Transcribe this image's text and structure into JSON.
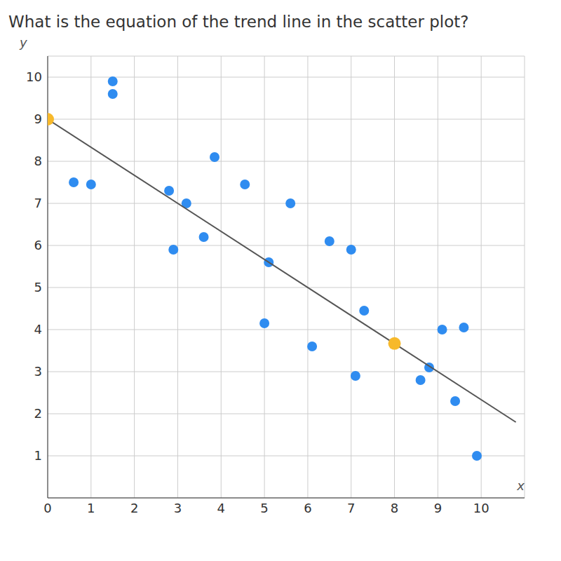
{
  "chart_data": {
    "type": "scatter",
    "title": "What is the equation of the trend line in the scatter plot?",
    "x_label": "x",
    "y_label": "y",
    "xlim": [
      0,
      11
    ],
    "ylim": [
      0,
      10.5
    ],
    "xticks": [
      0,
      1,
      2,
      3,
      4,
      5,
      6,
      7,
      8,
      9,
      10
    ],
    "yticks": [
      1,
      2,
      3,
      4,
      5,
      6,
      7,
      8,
      9,
      10
    ],
    "grid": true,
    "series": [
      {
        "type": "scatter",
        "marker": "circle",
        "color": "#2f8cf0",
        "x": [
          1.5,
          1.5,
          0.6,
          1.0,
          2.8,
          3.2,
          2.9,
          3.6,
          3.85,
          4.55,
          5.1,
          5.6,
          5.0,
          6.1,
          6.5,
          7.0,
          7.3,
          7.1,
          9.1,
          9.6,
          8.8,
          8.6,
          9.4,
          9.9
        ],
        "y": [
          9.9,
          9.6,
          7.5,
          7.45,
          7.3,
          7.0,
          5.9,
          6.2,
          8.1,
          7.45,
          5.6,
          7.0,
          4.15,
          3.6,
          6.1,
          5.9,
          4.45,
          2.9,
          4.0,
          4.05,
          3.1,
          2.8,
          2.3,
          1.0
        ]
      },
      {
        "type": "line",
        "line_style": "solid",
        "color": "#555555",
        "x": [
          0,
          10.8
        ],
        "y": [
          9,
          1.8
        ]
      },
      {
        "type": "scatter",
        "marker": "circle",
        "color": "#f7b92b",
        "x": [
          0,
          8
        ],
        "y": [
          9,
          3.67
        ]
      }
    ]
  }
}
